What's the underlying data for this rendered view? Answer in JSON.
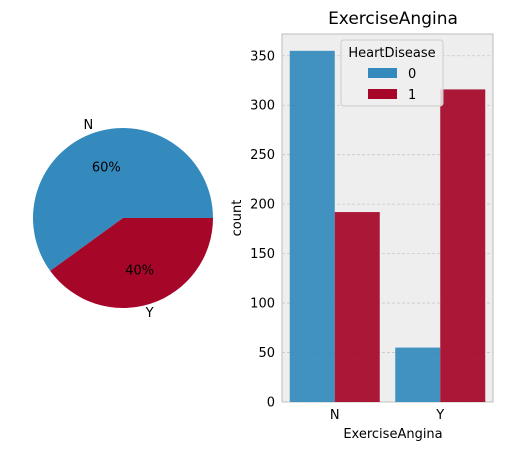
{
  "colors": {
    "n": "#348abd",
    "y": "#a60628",
    "grid": "#c8c8c8",
    "axes_bg": "#eeeeee",
    "spine": "#bcbcbc"
  },
  "chart_data": [
    {
      "type": "pie",
      "labels": [
        "N",
        "Y"
      ],
      "values": [
        60,
        40
      ],
      "pct_labels": [
        "60%",
        "40%"
      ]
    },
    {
      "type": "bar",
      "title": "ExerciseAngina",
      "xlabel": "ExerciseAngina",
      "ylabel": "count",
      "categories": [
        "N",
        "Y"
      ],
      "ylim": [
        0,
        372
      ],
      "yticks": [
        0,
        50,
        100,
        150,
        200,
        250,
        300,
        350
      ],
      "grid": true,
      "legend": {
        "title": "HeartDisease",
        "placement": "top-center"
      },
      "series": [
        {
          "name": "0",
          "values": [
            355,
            55
          ]
        },
        {
          "name": "1",
          "values": [
            192,
            316
          ]
        }
      ]
    }
  ]
}
